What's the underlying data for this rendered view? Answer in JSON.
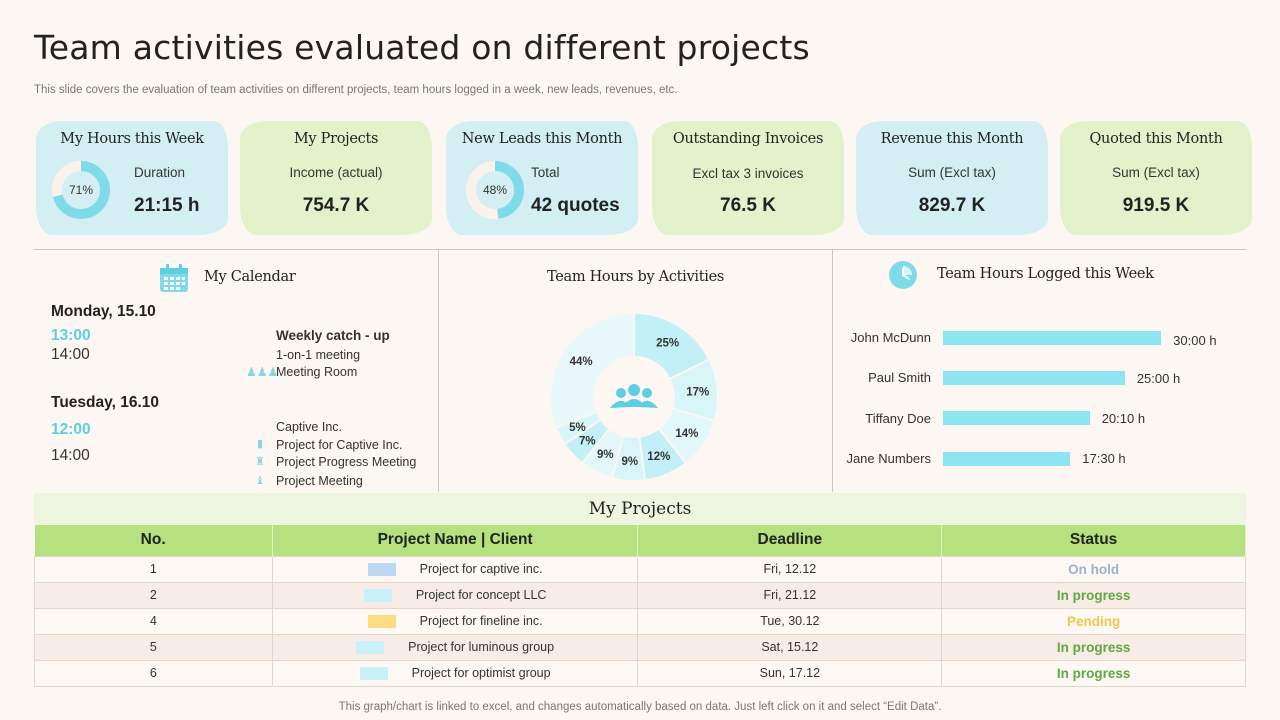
{
  "page": {
    "title": "Team activities evaluated on different projects",
    "subtitle": "This slide covers the evaluation of team activities on different projects, team hours logged in a week, new leads, revenues, etc.",
    "footer": "This graph/chart is linked to excel,  and changes automatically based on data. Just left click on it and select “Edit Data”."
  },
  "kpis": [
    {
      "title": "My Hours this Week",
      "label": "Duration",
      "value": "21:15 h",
      "donut_text": "71%",
      "donut_fraction": 0.71,
      "style": "blue"
    },
    {
      "title": "My Projects",
      "label": "Income (actual)",
      "value": "754.7 K",
      "style": "green"
    },
    {
      "title": "New Leads this Month",
      "label": "Total",
      "value": "42 quotes",
      "donut_text": "48%",
      "donut_fraction": 0.48,
      "style": "blue"
    },
    {
      "title": "Outstanding Invoices",
      "label": "Excl tax 3 invoices",
      "value": "76.5 K",
      "style": "green"
    },
    {
      "title": "Revenue this Month",
      "label": "Sum (Excl tax)",
      "value": "829.7 K",
      "style": "blue"
    },
    {
      "title": "Quoted this Month",
      "label": "Sum (Excl tax)",
      "value": "919.5 K",
      "style": "green"
    }
  ],
  "calendar": {
    "title": "My Calendar",
    "days": [
      {
        "day": "Monday, 15.10",
        "start": "13:00",
        "end": "14:00",
        "lines": [
          "Weekly catch - up",
          "1-on-1 meeting",
          "Meeting Room"
        ]
      },
      {
        "day": "Tuesday, 16.10",
        "start": "12:00",
        "end": "14:00",
        "lines": [
          "Captive Inc.",
          "Project for Captive Inc.",
          "Project Progress Meeting",
          "Project Meeting"
        ]
      }
    ]
  },
  "activities": {
    "title": "Team Hours by Activities",
    "chart_data": {
      "type": "pie",
      "variant": "donut",
      "values": [
        25,
        17,
        14,
        12,
        9,
        9,
        7,
        5,
        44
      ],
      "labels": [
        "25%",
        "17%",
        "14%",
        "12%",
        "9%",
        "9%",
        "7%",
        "5%",
        "44%"
      ],
      "center_icon": "team-icon"
    }
  },
  "logged": {
    "title": "Team Hours Logged this Week",
    "chart_data": {
      "type": "bar",
      "orientation": "horizontal",
      "categories": [
        "John McDunn",
        "Paul Smith",
        "Tiffany Doe",
        "Jane Numbers"
      ],
      "values": [
        30,
        25,
        20.17,
        17.5
      ],
      "value_labels": [
        "30:00 h",
        "25:00 h",
        "20:10 h",
        "17:30 h"
      ],
      "xlim": [
        0,
        33
      ]
    }
  },
  "projects": {
    "title": "My Projects",
    "headers": [
      "No.",
      "Project Name | Client",
      "Deadline",
      "Status"
    ],
    "rows": [
      {
        "no": "1",
        "name": "Project for captive inc.",
        "deadline": "Fri,   12.12",
        "status": "On hold",
        "swatch": "#bcd8f2",
        "status_color": "#9fb2c8"
      },
      {
        "no": "2",
        "name": "Project for concept LLC",
        "deadline": "Fri,   21.12",
        "status": "In progress",
        "swatch": "#c9f1f7",
        "status_color": "#5fa842"
      },
      {
        "no": "4",
        "name": "Project for fineline inc.",
        "deadline": "Tue,  30.12",
        "status": "Pending",
        "swatch": "#fbdc82",
        "status_color": "#efc84a"
      },
      {
        "no": "5",
        "name": "Project for luminous group",
        "deadline": "Sat, 15.12",
        "status": "In progress",
        "swatch": "#c9f1f7",
        "status_color": "#5fa842"
      },
      {
        "no": "6",
        "name": "Project for optimist group",
        "deadline": "Sun, 17.12",
        "status": "In progress",
        "swatch": "#c9f1f7",
        "status_color": "#5fa842"
      }
    ]
  }
}
